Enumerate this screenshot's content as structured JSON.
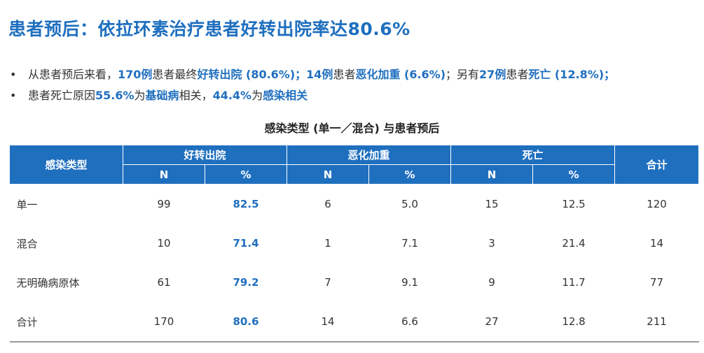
{
  "title": "患者预后：依拉环素治疗患者好转出院率达80.6%",
  "bullets": [
    {
      "parts": [
        {
          "text": "从患者预后来看，",
          "hl": false
        },
        {
          "text": "170例",
          "hl": true
        },
        {
          "text": "患者最终",
          "hl": false
        },
        {
          "text": "好转出院 (80.6%)；",
          "hl": true
        },
        {
          "text": "14例",
          "hl": true
        },
        {
          "text": "患者",
          "hl": false
        },
        {
          "text": "恶化加重 (6.6%)",
          "hl": true
        },
        {
          "text": "；另有",
          "hl": false
        },
        {
          "text": "27例",
          "hl": true
        },
        {
          "text": "患者",
          "hl": false
        },
        {
          "text": "死亡 (12.8%)；",
          "hl": true
        }
      ]
    },
    {
      "parts": [
        {
          "text": "患者死亡原因",
          "hl": false
        },
        {
          "text": "55.6%",
          "hl": true
        },
        {
          "text": "为",
          "hl": false
        },
        {
          "text": "基础病",
          "hl": true
        },
        {
          "text": "相关，",
          "hl": false
        },
        {
          "text": "44.4%",
          "hl": true
        },
        {
          "text": "为",
          "hl": false
        },
        {
          "text": "感染相关",
          "hl": true
        }
      ]
    }
  ],
  "table": {
    "caption": "感染类型 (单一／混合) 与患者预后",
    "header_type": "感染类型",
    "group_improved": "好转出院",
    "group_worsened": "恶化加重",
    "group_death": "死亡",
    "header_total": "合计",
    "n_label": "N",
    "pct_label": "%",
    "rows": [
      {
        "label": "单一",
        "improved_n": "99",
        "improved_pct": "82.5",
        "worsened_n": "6",
        "worsened_pct": "5.0",
        "death_n": "15",
        "death_pct": "12.5",
        "total": "120"
      },
      {
        "label": "混合",
        "improved_n": "10",
        "improved_pct": "71.4",
        "worsened_n": "1",
        "worsened_pct": "7.1",
        "death_n": "3",
        "death_pct": "21.4",
        "total": "14"
      },
      {
        "label": "无明确病原体",
        "improved_n": "61",
        "improved_pct": "79.2",
        "worsened_n": "7",
        "worsened_pct": "9.1",
        "death_n": "9",
        "death_pct": "11.7",
        "total": "77"
      },
      {
        "label": "合计",
        "improved_n": "170",
        "improved_pct": "80.6",
        "worsened_n": "14",
        "worsened_pct": "6.6",
        "death_n": "27",
        "death_pct": "12.8",
        "total": "211"
      }
    ]
  }
}
